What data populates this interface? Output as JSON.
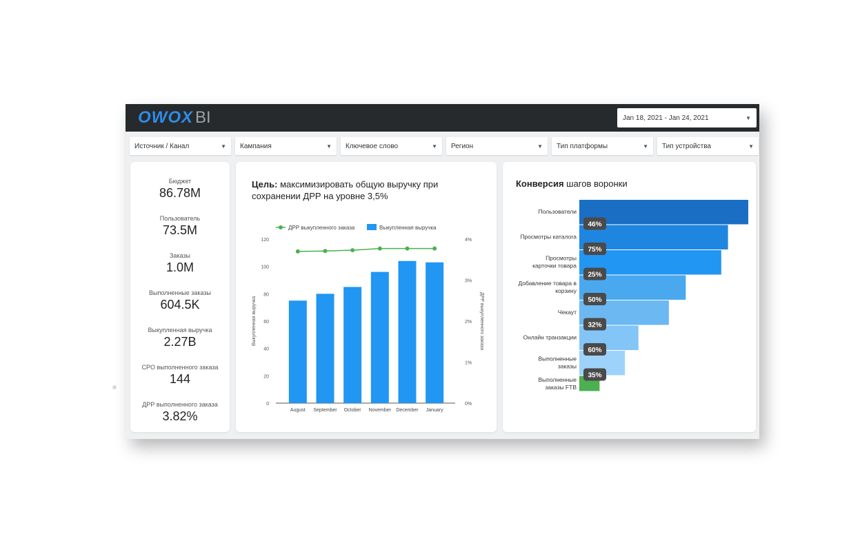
{
  "header": {
    "logo_primary": "OWOX",
    "logo_secondary": "BI",
    "date_range": "Jan 18, 2021 - Jan 24, 2021"
  },
  "filters": [
    {
      "label": "Источник / Канал"
    },
    {
      "label": "Кампания"
    },
    {
      "label": "Ключевое слово"
    },
    {
      "label": "Регион"
    },
    {
      "label": "Тип платформы"
    },
    {
      "label": "Тип устройства"
    }
  ],
  "kpis": [
    {
      "label": "Бюджет",
      "value": "86.78M"
    },
    {
      "label": "Пользователь",
      "value": "73.5M"
    },
    {
      "label": "Заказы",
      "value": "1.0M"
    },
    {
      "label": "Выполненные заказы",
      "value": "604.5K"
    },
    {
      "label": "Выкупленная выручка",
      "value": "2.27B"
    },
    {
      "label": "CPO выполненного заказа",
      "value": "144"
    },
    {
      "label": "ДРР выполненного заказа",
      "value": "3.82%"
    }
  ],
  "revenue_chart": {
    "title_bold": "Цель:",
    "title_rest": " максимизировать общую выручку при сохранении ДРР на уровне 3,5%"
  },
  "funnel": {
    "title_bold": "Конверсия",
    "title_rest": " шагов воронки"
  },
  "colors": {
    "topbar": "#262a2d",
    "logo": "#2e8ce8",
    "bar": "#2196f3",
    "line": "#4caf50",
    "funnel_1": "#1a6fc4",
    "funnel_2": "#1e86e0",
    "funnel_3": "#2196f3",
    "funnel_4": "#4aa8ef",
    "funnel_5": "#6bb8f3",
    "funnel_6": "#83c5f7",
    "funnel_7": "#9dd2fa",
    "funnel_ftb": "#4caf50",
    "badge": "#4a4a4a"
  },
  "chart_data": [
    {
      "type": "bar",
      "categories": [
        "August",
        "September",
        "October",
        "November",
        "December",
        "January"
      ],
      "series": [
        {
          "name": "Выкупленная выручка",
          "axis": "left",
          "values": [
            75,
            80,
            85,
            96,
            104,
            103
          ]
        },
        {
          "name": "ДРР выкупленного заказа",
          "type": "line",
          "axis": "right",
          "values": [
            3.7,
            3.71,
            3.73,
            3.77,
            3.77,
            3.77
          ]
        }
      ],
      "ylabel": "Выкупленная выручка",
      "y2label": "ДРР выкупленного заказа",
      "ylim": [
        0,
        120
      ],
      "yticks": [
        "0",
        "20",
        "40",
        "60",
        "80",
        "100",
        "120"
      ],
      "y2lim": [
        0,
        4
      ],
      "y2ticks": [
        "0%",
        "1%",
        "2%",
        "3%",
        "4%"
      ],
      "legend": "top"
    },
    {
      "type": "bar",
      "orientation": "horizontal",
      "categories": [
        "Пользователи",
        "Просмотры каталога",
        "Просмотры карточки товара",
        "Добавление товара в корзину",
        "Чекаут",
        "Онлайн транзакции",
        "Выполненные заказы",
        "Выполненные заказы FTB"
      ],
      "values": [
        100,
        88,
        84,
        63,
        53,
        35,
        27,
        12
      ],
      "conversion_labels": [
        "46%",
        "75%",
        "25%",
        "50%",
        "32%",
        "60%",
        "35%"
      ]
    }
  ]
}
